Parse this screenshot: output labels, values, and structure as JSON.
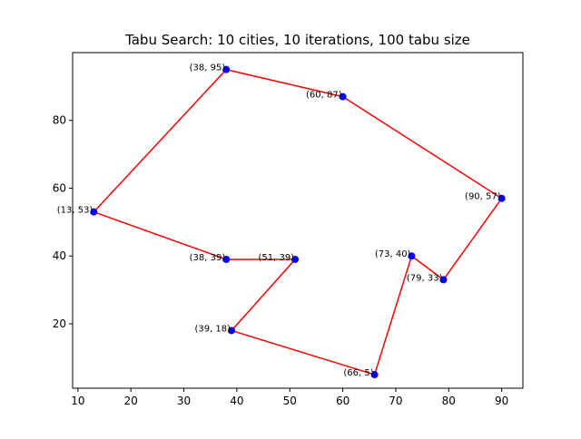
{
  "chart_data": {
    "type": "line",
    "title": "Tabu Search: 10 cities, 10 iterations, 100 tabu size",
    "xlabel": "",
    "ylabel": "",
    "xlim": [
      9,
      94
    ],
    "ylim": [
      1,
      100
    ],
    "xticks": [
      10,
      20,
      30,
      40,
      50,
      60,
      70,
      80,
      90
    ],
    "yticks": [
      20,
      40,
      60,
      80
    ],
    "grid": false,
    "points": [
      {
        "x": 38,
        "y": 95,
        "label": "(38, 95)"
      },
      {
        "x": 60,
        "y": 87,
        "label": "(60, 87)"
      },
      {
        "x": 90,
        "y": 57,
        "label": "(90, 57)"
      },
      {
        "x": 79,
        "y": 33,
        "label": "(79, 33)"
      },
      {
        "x": 73,
        "y": 40,
        "label": "(73, 40)"
      },
      {
        "x": 66,
        "y": 5,
        "label": "(66, 5)"
      },
      {
        "x": 39,
        "y": 18,
        "label": "(39, 18)"
      },
      {
        "x": 51,
        "y": 39,
        "label": "(51, 39)"
      },
      {
        "x": 38,
        "y": 39,
        "label": "(38, 39)"
      },
      {
        "x": 13,
        "y": 53,
        "label": "(13, 53)"
      }
    ],
    "route_order": [
      0,
      1,
      2,
      3,
      4,
      5,
      6,
      7,
      8,
      9,
      0
    ],
    "colors": {
      "route": "#ff0000",
      "point": "#0000ff"
    }
  }
}
